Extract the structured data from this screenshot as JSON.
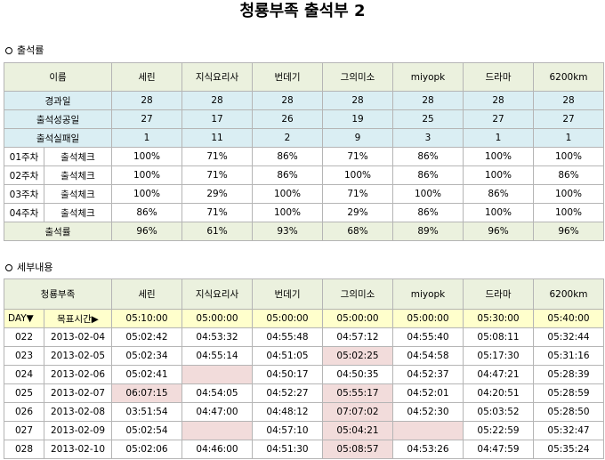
{
  "title": "청룡부족 출석부 2",
  "section1_title": "출석률",
  "section2_title": "세부내용",
  "attendance": {
    "header_label": "이름",
    "members": [
      "세린",
      "지식요리사",
      "번데기",
      "그의미소",
      "miyopk",
      "드라마",
      "6200km"
    ],
    "summary_rows": [
      {
        "label": "경과일",
        "values": [
          "28",
          "28",
          "28",
          "28",
          "28",
          "28",
          "28"
        ]
      },
      {
        "label": "출석성공일",
        "values": [
          "27",
          "17",
          "26",
          "19",
          "25",
          "27",
          "27"
        ]
      },
      {
        "label": "출석실패일",
        "values": [
          "1",
          "11",
          "2",
          "9",
          "3",
          "1",
          "1"
        ]
      }
    ],
    "check_label": "출석체크",
    "weeks": [
      {
        "week": "01주차",
        "values": [
          "100%",
          "71%",
          "86%",
          "71%",
          "86%",
          "100%",
          "100%"
        ]
      },
      {
        "week": "02주차",
        "values": [
          "100%",
          "71%",
          "86%",
          "100%",
          "86%",
          "100%",
          "86%"
        ]
      },
      {
        "week": "03주차",
        "values": [
          "100%",
          "29%",
          "100%",
          "71%",
          "100%",
          "86%",
          "100%"
        ]
      },
      {
        "week": "04주차",
        "values": [
          "86%",
          "71%",
          "100%",
          "29%",
          "86%",
          "100%",
          "100%"
        ]
      }
    ],
    "total": {
      "label": "출석률",
      "values": [
        "96%",
        "61%",
        "93%",
        "68%",
        "89%",
        "96%",
        "96%"
      ]
    }
  },
  "details": {
    "header_label": "청룡부족",
    "day_label": "DAY▼",
    "target_label": "목표시간▶",
    "targets": [
      "05:10:00",
      "05:00:00",
      "05:00:00",
      "05:00:00",
      "05:00:00",
      "05:30:00",
      "05:40:00"
    ],
    "rows": [
      {
        "day": "022",
        "date": "2013-02-04",
        "times": [
          "05:02:42",
          "04:53:32",
          "04:55:48",
          "04:57:12",
          "04:55:40",
          "05:08:11",
          "05:32:44"
        ],
        "missed": [
          false,
          false,
          false,
          false,
          false,
          false,
          false
        ]
      },
      {
        "day": "023",
        "date": "2013-02-05",
        "times": [
          "05:02:34",
          "04:55:14",
          "04:51:05",
          "05:02:25",
          "04:54:58",
          "05:17:30",
          "05:31:16"
        ],
        "missed": [
          false,
          false,
          false,
          true,
          false,
          false,
          false
        ]
      },
      {
        "day": "024",
        "date": "2013-02-06",
        "times": [
          "05:02:41",
          "",
          "04:50:17",
          "04:50:35",
          "04:52:37",
          "04:47:21",
          "05:28:39"
        ],
        "missed": [
          false,
          true,
          false,
          false,
          false,
          false,
          false
        ]
      },
      {
        "day": "025",
        "date": "2013-02-07",
        "times": [
          "06:07:15",
          "04:54:05",
          "04:52:27",
          "05:55:17",
          "04:52:01",
          "04:20:51",
          "05:28:59"
        ],
        "missed": [
          true,
          false,
          false,
          true,
          false,
          false,
          false
        ]
      },
      {
        "day": "026",
        "date": "2013-02-08",
        "times": [
          "03:51:54",
          "04:47:00",
          "04:48:12",
          "07:07:02",
          "04:52:30",
          "05:03:52",
          "05:28:50"
        ],
        "missed": [
          false,
          false,
          false,
          true,
          false,
          false,
          false
        ]
      },
      {
        "day": "027",
        "date": "2013-02-09",
        "times": [
          "05:02:54",
          "",
          "04:57:10",
          "05:04:21",
          "",
          "05:22:59",
          "05:32:47"
        ],
        "missed": [
          false,
          true,
          false,
          true,
          true,
          false,
          false
        ]
      },
      {
        "day": "028",
        "date": "2013-02-10",
        "times": [
          "05:02:06",
          "04:46:00",
          "04:51:30",
          "05:08:57",
          "04:53:26",
          "04:47:59",
          "05:35:24"
        ],
        "missed": [
          false,
          false,
          false,
          true,
          false,
          false,
          false
        ]
      }
    ]
  },
  "colors": {
    "header_bg": "#ebf1de",
    "summary_bg": "#daeef3",
    "target_bg": "#ffffcc",
    "missed_bg": "#f2dcdb",
    "border": "#b5b5b5"
  }
}
